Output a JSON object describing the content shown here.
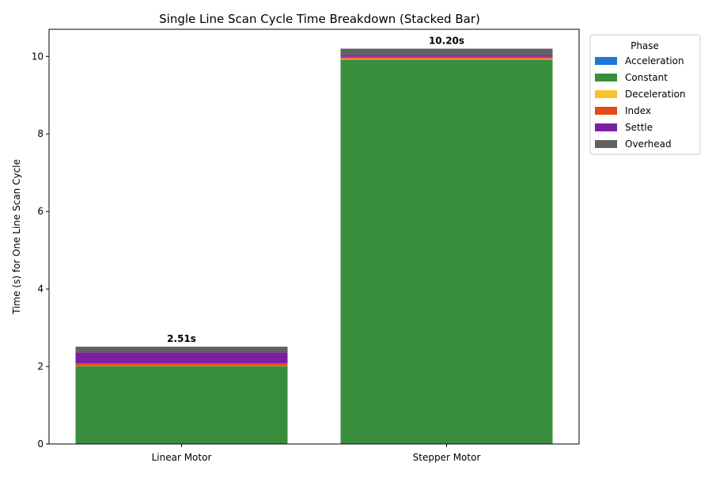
{
  "chart_data": {
    "type": "bar",
    "stacked": true,
    "title": "Single Line Scan Cycle Time Breakdown (Stacked Bar)",
    "xlabel": "",
    "ylabel": "Time (s) for One Line Scan Cycle",
    "categories": [
      "Linear Motor",
      "Stepper Motor"
    ],
    "ylim": [
      0,
      10.7
    ],
    "yticks": [
      0,
      2,
      4,
      6,
      8,
      10
    ],
    "grid": false,
    "legend_title": "Phase",
    "legend_position": "outside-top-right",
    "series": [
      {
        "name": "Acceleration",
        "color": "#1f77d4",
        "values": [
          0.005,
          0.02
        ]
      },
      {
        "name": "Constant",
        "color": "#388e3c",
        "values": [
          2.0,
          9.9
        ]
      },
      {
        "name": "Deceleration",
        "color": "#fbc02d",
        "values": [
          0.005,
          0.02
        ]
      },
      {
        "name": "Index",
        "color": "#e64a19",
        "values": [
          0.07,
          0.05
        ]
      },
      {
        "name": "Settle",
        "color": "#7b1fa2",
        "values": [
          0.28,
          0.05
        ]
      },
      {
        "name": "Overhead",
        "color": "#616161",
        "values": [
          0.15,
          0.16
        ]
      }
    ],
    "total_labels": [
      "2.51s",
      "10.20s"
    ]
  }
}
